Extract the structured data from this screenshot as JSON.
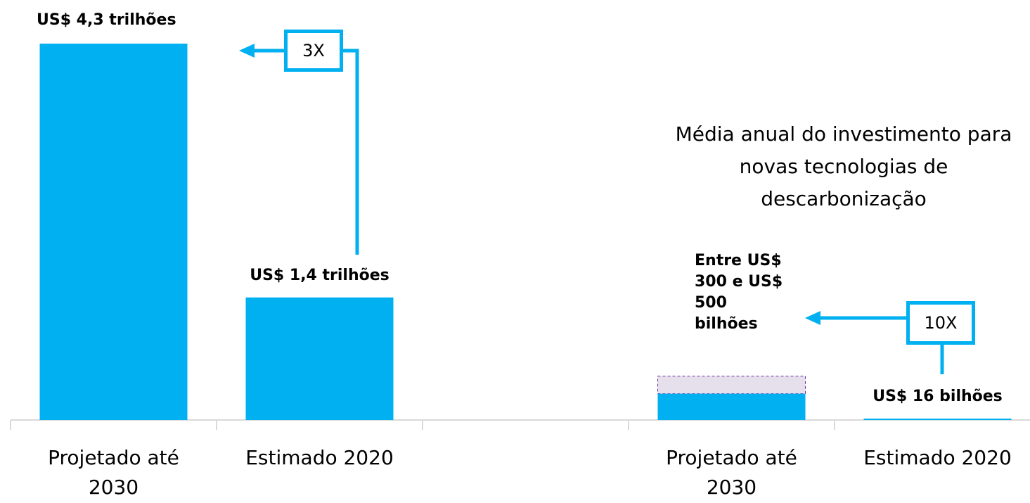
{
  "chart_data": {
    "type": "bar",
    "categories": [
      "Projetado até 2030",
      "Estimado 2020",
      null,
      "Projetado até 2030",
      "Estimado 2020"
    ],
    "values": [
      4300,
      1400,
      null,
      300,
      16
    ],
    "range_max": [
      null,
      null,
      null,
      500,
      null
    ],
    "value_labels": [
      "US$ 4,3 trilhões",
      "US$ 1,4 trilhões",
      null,
      "Entre US$ 300 e US$ 500 bilhões",
      "US$ 16 bilhões"
    ],
    "color": "#00b0f0",
    "range_color": "#e6e0ec",
    "ylim": [
      0,
      4300
    ],
    "annotations": [
      "3X",
      "10X",
      "Média anual do investimento para novas tecnologias de descarbonização"
    ]
  }
}
